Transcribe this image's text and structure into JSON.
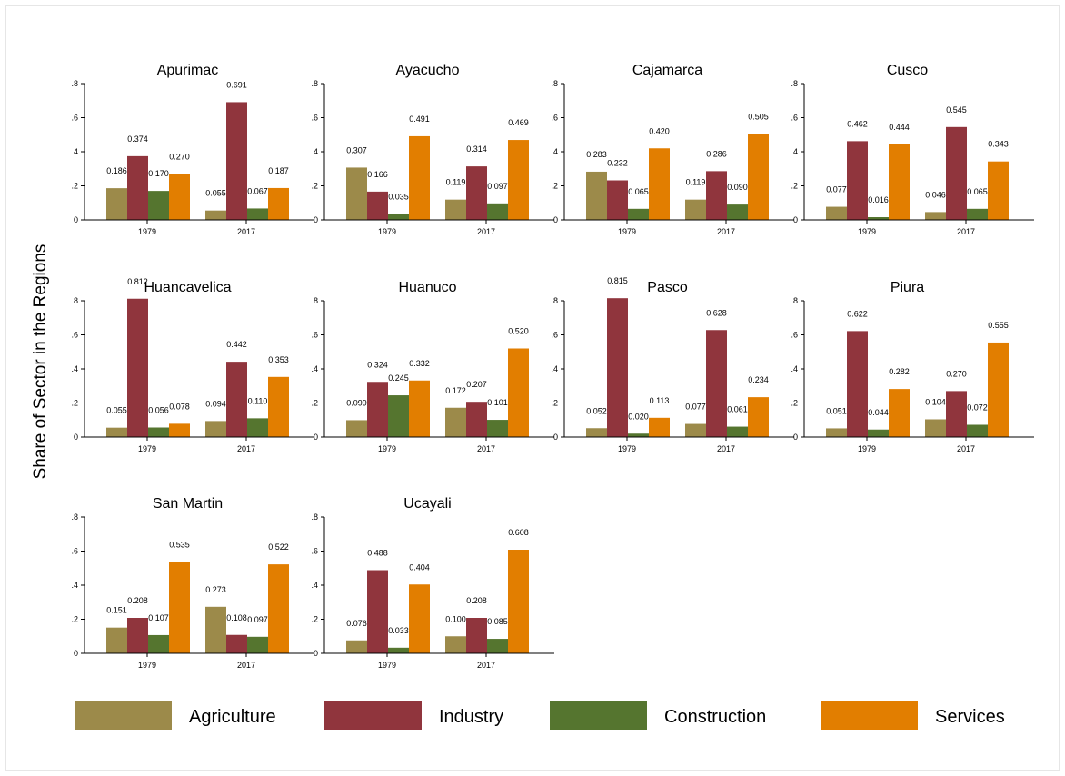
{
  "chart_data": {
    "type": "bar",
    "y_axis_title": "Share of Sector in the Regions",
    "y_ticks": [
      "0",
      ".2",
      ".4",
      ".6",
      ".8"
    ],
    "ylim": [
      0,
      0.8
    ],
    "categories": [
      "1979",
      "2017"
    ],
    "legend": {
      "placement": "bottom",
      "entries": [
        {
          "name": "Agriculture",
          "color": "#9c8a4a"
        },
        {
          "name": "Industry",
          "color": "#90353d"
        },
        {
          "name": "Construction",
          "color": "#55752f"
        },
        {
          "name": "Services",
          "color": "#e27e00"
        }
      ]
    },
    "panels": [
      {
        "region": "Apurimac",
        "values": [
          [
            0.186,
            0.374,
            0.17,
            0.27
          ],
          [
            0.055,
            0.691,
            0.067,
            0.187
          ]
        ],
        "labels": [
          [
            "0.186",
            "0.374",
            "0.170",
            "0.270"
          ],
          [
            "0.055",
            "0.691",
            "0.067",
            "0.187"
          ]
        ]
      },
      {
        "region": "Ayacucho",
        "values": [
          [
            0.307,
            0.166,
            0.035,
            0.491
          ],
          [
            0.119,
            0.314,
            0.097,
            0.469
          ]
        ],
        "labels": [
          [
            "0.307",
            "0.166",
            "0.035",
            "0.491"
          ],
          [
            "0.119",
            "0.314",
            "0.097",
            "0.469"
          ]
        ]
      },
      {
        "region": "Cajamarca",
        "values": [
          [
            0.283,
            0.232,
            0.065,
            0.42
          ],
          [
            0.119,
            0.286,
            0.09,
            0.505
          ]
        ],
        "labels": [
          [
            "0.283",
            "0.232",
            "0.065",
            "0.420"
          ],
          [
            "0.119",
            "0.286",
            "0.090",
            "0.505"
          ]
        ]
      },
      {
        "region": "Cusco",
        "values": [
          [
            0.077,
            0.462,
            0.016,
            0.444
          ],
          [
            0.046,
            0.545,
            0.065,
            0.343
          ]
        ],
        "labels": [
          [
            "0.077",
            "0.462",
            "0.016",
            "0.444"
          ],
          [
            "0.046",
            "0.545",
            "0.065",
            "0.343"
          ]
        ]
      },
      {
        "region": "Huancavelica",
        "values": [
          [
            0.055,
            0.812,
            0.056,
            0.078
          ],
          [
            0.094,
            0.442,
            0.11,
            0.353
          ]
        ],
        "labels": [
          [
            "0.055",
            "0.812",
            "0.056",
            "0.078"
          ],
          [
            "0.094",
            "0.442",
            "0.110",
            "0.353"
          ]
        ]
      },
      {
        "region": "Huanuco",
        "values": [
          [
            0.099,
            0.324,
            0.245,
            0.332
          ],
          [
            0.172,
            0.207,
            0.101,
            0.52
          ]
        ],
        "labels": [
          [
            "0.099",
            "0.324",
            "0.245",
            "0.332"
          ],
          [
            "0.172",
            "0.207",
            "0.101",
            "0.520"
          ]
        ]
      },
      {
        "region": "Pasco",
        "values": [
          [
            0.052,
            0.815,
            0.02,
            0.113
          ],
          [
            0.077,
            0.628,
            0.061,
            0.234
          ]
        ],
        "labels": [
          [
            "0.052",
            "0.815",
            "0.020",
            "0.113"
          ],
          [
            "0.077",
            "0.628",
            "0.061",
            "0.234"
          ]
        ]
      },
      {
        "region": "Piura",
        "values": [
          [
            0.051,
            0.622,
            0.044,
            0.282
          ],
          [
            0.104,
            0.27,
            0.072,
            0.555
          ]
        ],
        "labels": [
          [
            "0.051",
            "0.622",
            "0.044",
            "0.282"
          ],
          [
            "0.104",
            "0.270",
            "0.072",
            "0.555"
          ]
        ]
      },
      {
        "region": "San Martin",
        "values": [
          [
            0.151,
            0.208,
            0.107,
            0.535
          ],
          [
            0.273,
            0.108,
            0.097,
            0.522
          ]
        ],
        "labels": [
          [
            "0.151",
            "0.208",
            "0.107",
            "0.535"
          ],
          [
            "0.273",
            "0.108",
            "0.097",
            "0.522"
          ]
        ]
      },
      {
        "region": "Ucayali",
        "values": [
          [
            0.076,
            0.488,
            0.033,
            0.404
          ],
          [
            0.1,
            0.208,
            0.085,
            0.608
          ]
        ],
        "labels": [
          [
            "0.076",
            "0.488",
            "0.033",
            "0.404"
          ],
          [
            "0.100",
            "0.208",
            "0.085",
            "0.608"
          ]
        ]
      }
    ]
  }
}
